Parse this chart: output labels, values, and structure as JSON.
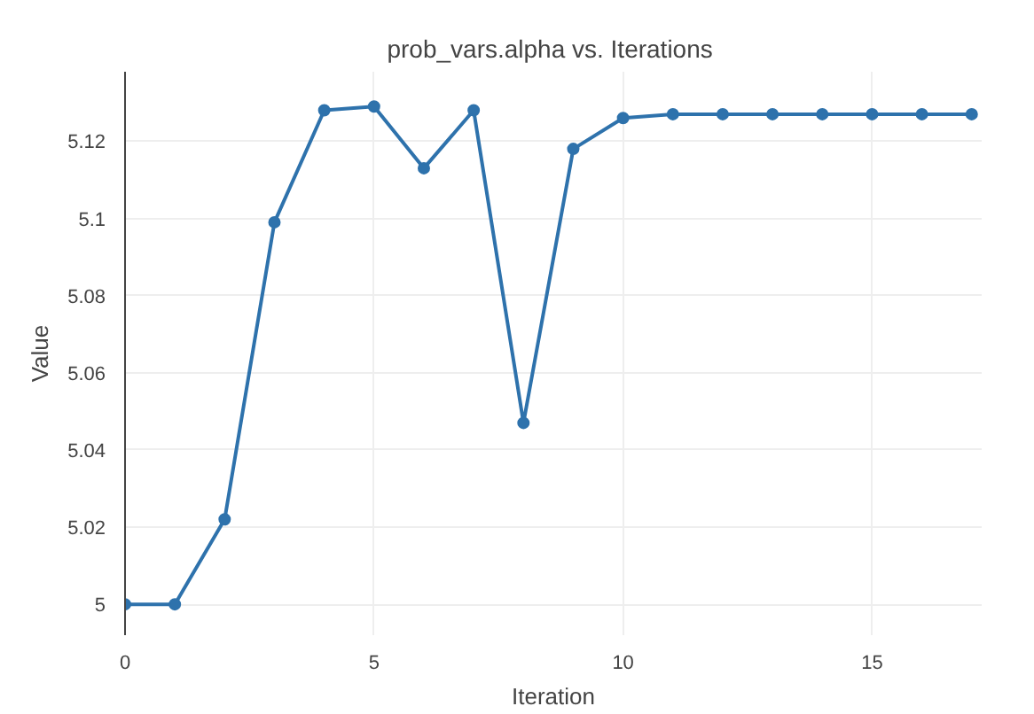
{
  "chart_data": {
    "type": "line",
    "title": "prob_vars.alpha  vs. Iterations",
    "xlabel": "Iteration",
    "ylabel": "Value",
    "x": [
      0,
      1,
      2,
      3,
      4,
      5,
      6,
      7,
      8,
      9,
      10,
      11,
      12,
      13,
      14,
      15,
      16,
      17
    ],
    "series": [
      {
        "color": "#2e72ac",
        "values": [
          5.0,
          5.0,
          5.022,
          5.099,
          5.128,
          5.129,
          5.113,
          5.128,
          5.047,
          5.118,
          5.126,
          5.127,
          5.127,
          5.127,
          5.127,
          5.127,
          5.127,
          5.127
        ]
      }
    ],
    "xlim": [
      0,
      17.2
    ],
    "ylim": [
      4.992,
      5.138
    ],
    "xticks": [
      0,
      5,
      10,
      15
    ],
    "yticks": [
      5,
      5.02,
      5.04,
      5.06,
      5.08,
      5.1,
      5.12
    ],
    "grid": true,
    "marker": "circle",
    "line_style": "solid"
  }
}
